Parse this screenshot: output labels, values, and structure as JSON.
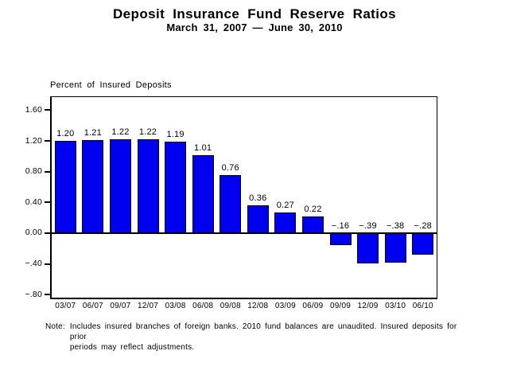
{
  "page": {
    "background": "#FFFFFF",
    "text_color": "#000000"
  },
  "header": {
    "title": "Deposit Insurance Fund Reserve Ratios",
    "subtitle": "March 31, 2007 — June 30, 2010"
  },
  "chart_data": {
    "type": "bar",
    "title": "Deposit Insurance Fund Reserve Ratios",
    "subtitle": "March 31, 2007 — June 30, 2010",
    "ylabel": "Percent of Insured Deposits",
    "xlabel": "",
    "categories": [
      "03/07",
      "06/07",
      "09/07",
      "12/07",
      "03/08",
      "06/08",
      "09/08",
      "12/08",
      "03/09",
      "06/09",
      "09/09",
      "12/09",
      "03/10",
      "06/10"
    ],
    "values": [
      1.2,
      1.21,
      1.22,
      1.22,
      1.19,
      1.01,
      0.76,
      0.36,
      0.27,
      0.22,
      -0.16,
      -0.39,
      -0.38,
      -0.28
    ],
    "value_labels": [
      "1.20",
      "1.21",
      "1.22",
      "1.22",
      "1.19",
      "1.01",
      "0.76",
      "0.36",
      "0.27",
      "0.22",
      "−.16",
      "−.39",
      "−.38",
      "−.28"
    ],
    "y_ticks": [
      {
        "value": 1.6,
        "label": "1.60"
      },
      {
        "value": 1.2,
        "label": "1.20"
      },
      {
        "value": 0.8,
        "label": "0.80"
      },
      {
        "value": 0.4,
        "label": "0.40"
      },
      {
        "value": 0.0,
        "label": "0.00"
      },
      {
        "value": -0.4,
        "label": "−.40"
      },
      {
        "value": -0.8,
        "label": "−.80"
      }
    ],
    "ylim": [
      -0.84,
      1.77
    ],
    "grid": false,
    "zero_line": true,
    "legend": "none",
    "bar_color": "#0000F0",
    "bar_border_color": "#000000",
    "axis_color": "#000000"
  },
  "note": {
    "prefix": "Note:",
    "line1": "Includes insured branches of foreign banks. 2010 fund balances are unaudited. Insured deposits for prior",
    "line2": "periods may reflect adjustments."
  }
}
